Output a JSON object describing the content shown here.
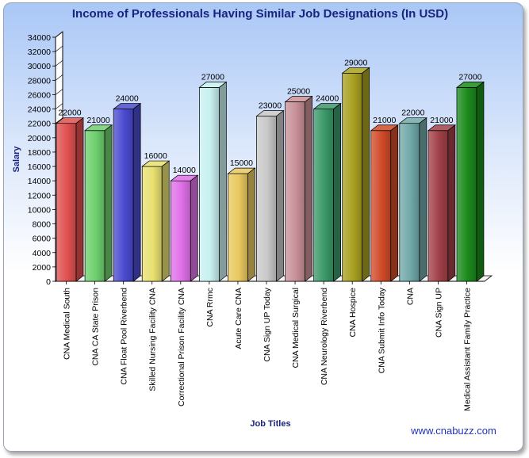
{
  "chart_data": {
    "type": "bar",
    "title": "Income of Professionals Having Similar Job Designations (In USD)",
    "xlabel": "Job Titles",
    "ylabel": "Salary",
    "ylim": [
      0,
      34000
    ],
    "yticks": [
      0,
      2000,
      4000,
      6000,
      8000,
      10000,
      12000,
      14000,
      16000,
      18000,
      20000,
      22000,
      24000,
      26000,
      28000,
      30000,
      32000,
      34000
    ],
    "categories": [
      "CNA Medical South",
      "CNA CA State Prison",
      "CNA Float Pool Riverbend",
      "Skilled Nursing Facility CNA",
      "Correctional Prison Facility CNA",
      "CNA Rrmc",
      "Acute Care CNA",
      "CNA Sign UP Today",
      "CNA Medical Surgical",
      "CNA Neurology Riverbend",
      "CNA Hospice",
      "CNA Submit Info Today",
      "CNA",
      "CNA Sign UP",
      "Medical Assistant Family Practice"
    ],
    "values": [
      22000,
      21000,
      24000,
      16000,
      14000,
      27000,
      15000,
      23000,
      25000,
      24000,
      29000,
      21000,
      22000,
      21000,
      27000
    ],
    "colors": [
      "#e05050",
      "#6ecf6e",
      "#4a4ad0",
      "#e8e070",
      "#e070e8",
      "#c8f0f0",
      "#e8c860",
      "#c8c8c8",
      "#c89098",
      "#3a9868",
      "#a8a020",
      "#d04a28",
      "#70a8a8",
      "#a04048",
      "#1a8a1a"
    ],
    "grid": false,
    "legend": "none"
  },
  "watermark": "www.cnabuzz.com"
}
